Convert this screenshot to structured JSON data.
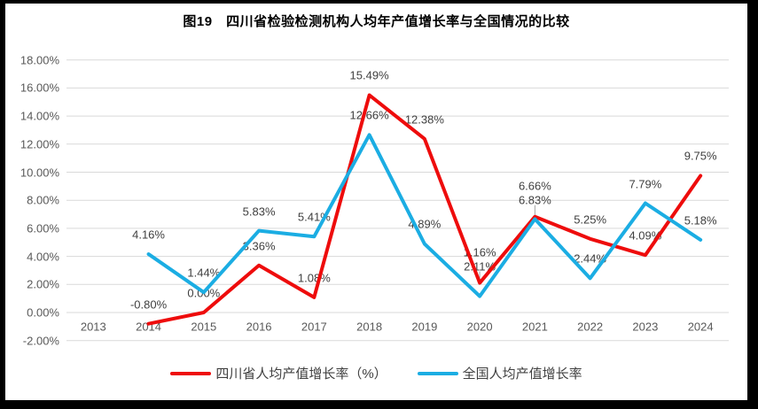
{
  "figure": {
    "title": "图19　四川省检验检测机构人均年产值增长率与全国情况的比较"
  },
  "chart_data": {
    "type": "line",
    "title": "图19　四川省检验检测机构人均年产值增长率与全国情况的比较",
    "x": [
      "2013",
      "2014",
      "2015",
      "2016",
      "2017",
      "2018",
      "2019",
      "2020",
      "2021",
      "2022",
      "2023",
      "2024"
    ],
    "series": [
      {
        "name": "四川省人均产值增长率（%）",
        "color": "#ee0c0c",
        "x_start_index": 1,
        "values": [
          -0.8,
          0.0,
          3.36,
          1.08,
          15.49,
          12.38,
          2.11,
          6.83,
          5.25,
          4.09,
          9.75
        ],
        "labels": [
          "-0.80%",
          "0.00%",
          "3.36%",
          "1.08%",
          "15.49%",
          "12.38%",
          "2.11%",
          "6.83%",
          "5.25%",
          "4.09%",
          "9.75%"
        ]
      },
      {
        "name": "全国人均产值增长率",
        "color": "#1bade3",
        "x_start_index": 1,
        "values": [
          4.16,
          1.44,
          5.83,
          5.41,
          12.66,
          4.89,
          1.16,
          6.66,
          2.44,
          7.79,
          5.18
        ],
        "labels": [
          "4.16%",
          "1.44%",
          "5.83%",
          "5.41%",
          "12.66%",
          "4.89%",
          "1.16%",
          "6.66%",
          "2.44%",
          "7.79%",
          "5.18%"
        ]
      }
    ],
    "ylim": [
      -2,
      18
    ],
    "y_tick_step": 2,
    "y_tick_labels": [
      "-2.00%",
      "0.00%",
      "2.00%",
      "4.00%",
      "6.00%",
      "8.00%",
      "10.00%",
      "12.00%",
      "14.00%",
      "16.00%",
      "18.00%"
    ],
    "grid": true,
    "legend_position": "bottom",
    "colors": {
      "gridline": "#d9d9d9",
      "axis_text": "#595959",
      "data_label_text": "#3f3f3f",
      "leader_line": "#a6a6a6",
      "frame_border": "#000000"
    }
  }
}
